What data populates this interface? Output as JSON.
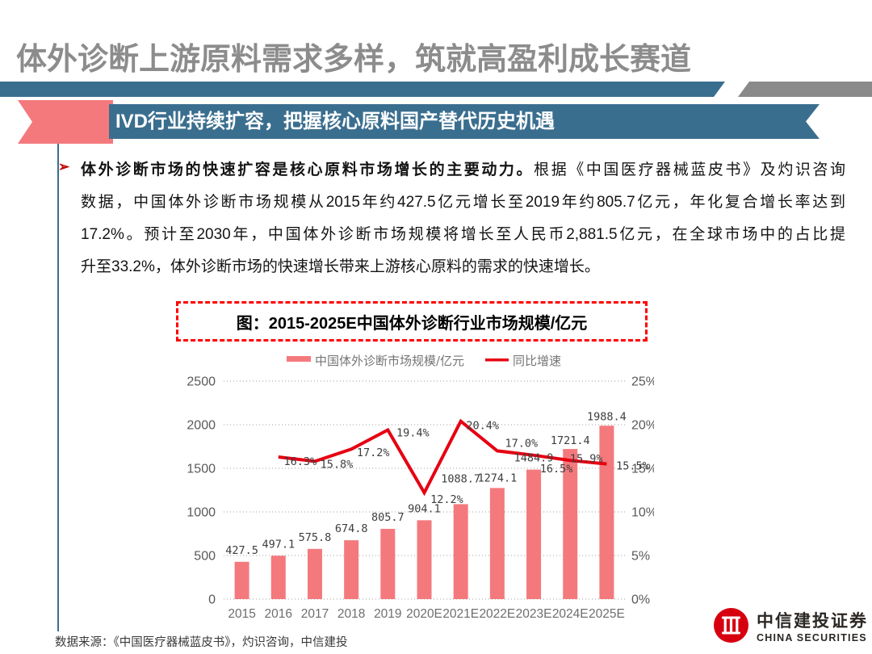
{
  "slide": {
    "title": "体外诊断上游原料需求多样，筑就高盈利成长赛道",
    "banner_label": "IVD行业持续扩容，把握核心原料国产替代历史机遇",
    "bullet_glyph": "➢",
    "paragraph_lines": [
      {
        "bold": "体外诊断市场的快速扩容是核心原料市场增长的主要动力。",
        "text": "根据《中国医疗器械蓝皮书》及灼识咨询"
      },
      "数据，中国体外诊断市场规模从2015年约427.5亿元增长至2019年约805.7亿元，年化复合增长率达到",
      "17.2%。预计至2030年，中国体外诊断市场规模将增长至人民币2,881.5亿元，在全球市场中的占比提",
      "升至33.2%，体外诊断市场的快速增长带来上游核心原料的需求的快速增长。"
    ],
    "source_note": "数据来源：《中国医疗器械蓝皮书》，灼识咨询，中信建投"
  },
  "figure": {
    "caption": "图：2015-2025E中国体外诊断行业市场规模/亿元"
  },
  "chart_data": {
    "type": "bar+line",
    "title": "图：2015-2025E中国体外诊断行业市场规模/亿元",
    "categories": [
      "2015",
      "2016",
      "2017",
      "2018",
      "2019",
      "2020E",
      "2021E",
      "2022E",
      "2023E",
      "2024E",
      "2025E"
    ],
    "series": [
      {
        "name": "中国体外诊断市场规模/亿元",
        "type": "bar",
        "axis": "left",
        "color": "#F4797D",
        "values": [
          427.5,
          497.1,
          575.8,
          674.8,
          805.7,
          904.1,
          1088.7,
          1274.1,
          1484.9,
          1721.4,
          1988.4
        ]
      },
      {
        "name": "同比增速",
        "type": "line",
        "axis": "right",
        "color": "#E60012",
        "values": [
          null,
          16.3,
          15.8,
          17.2,
          19.4,
          12.2,
          20.4,
          17.0,
          16.5,
          15.9,
          15.5
        ]
      }
    ],
    "left_axis": {
      "min": 0,
      "max": 2500,
      "ticks": [
        0,
        500,
        1000,
        1500,
        2000,
        2500
      ]
    },
    "right_axis": {
      "min": 0,
      "max": 25,
      "ticks": [
        "0%",
        "5%",
        "10%",
        "15%",
        "20%",
        "25%"
      ],
      "unit": "%"
    },
    "grid": "horizontal-dotted",
    "legend_position": "top-center"
  },
  "logo": {
    "company_cn": "中信建投证券",
    "company_en": "CHINA SECURITIES"
  },
  "colors": {
    "banner_blue": "#3A6E8F",
    "accent_salmon": "#F4797D",
    "line_red": "#E60012",
    "title_gray": "#8C8C8C",
    "dashed_border_red": "#FF0000"
  }
}
